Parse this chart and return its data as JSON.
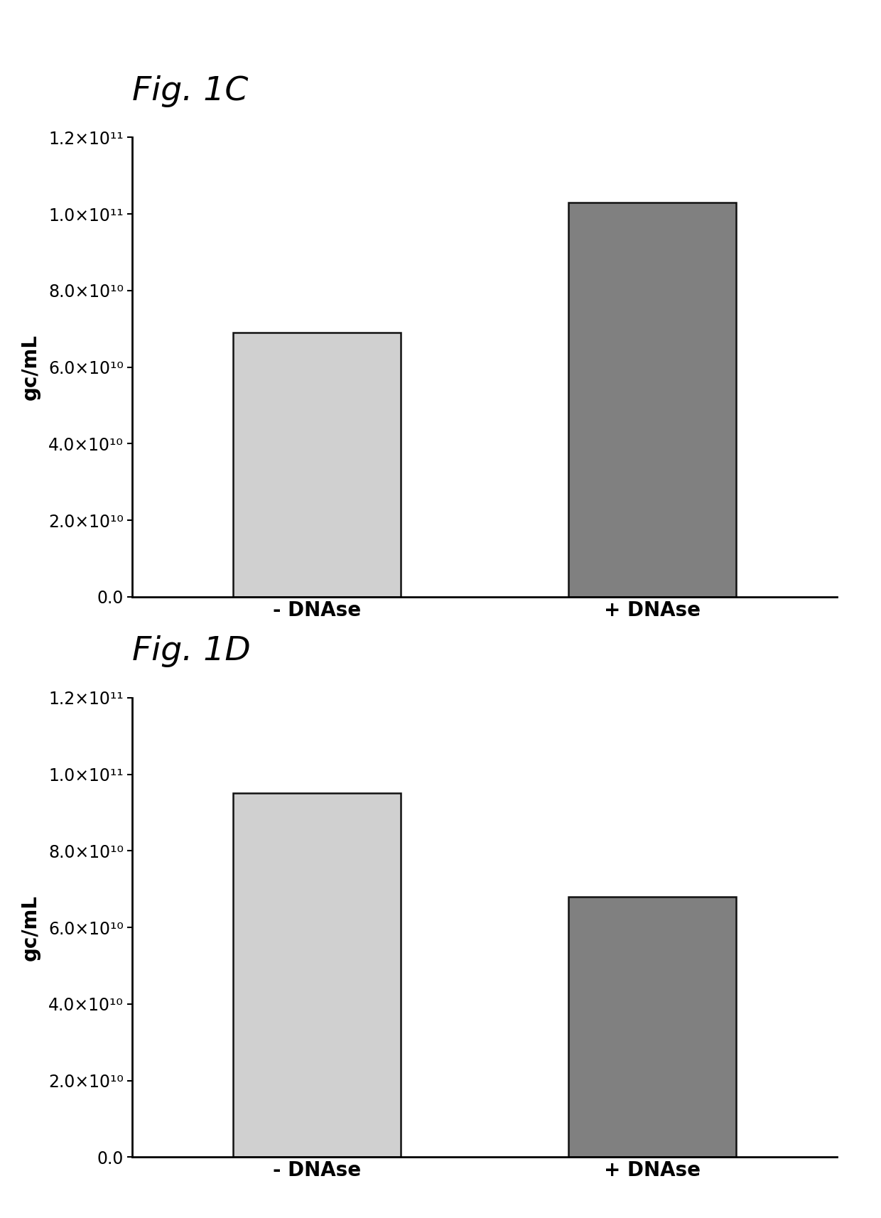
{
  "fig_c": {
    "title": "Fig. 1C",
    "categories": [
      "- DNAse",
      "+ DNAse"
    ],
    "values": [
      69000000000.0,
      103000000000.0
    ],
    "bar_colors": [
      "#d0d0d0",
      "#808080"
    ],
    "bar_edgecolor": "#111111",
    "bar_hatch": [
      "///",
      "///"
    ],
    "ylabel": "gc/mL",
    "ylim": [
      0,
      120000000000.0
    ],
    "yticks": [
      0.0,
      20000000000.0,
      40000000000.0,
      60000000000.0,
      80000000000.0,
      100000000000.0,
      120000000000.0
    ]
  },
  "fig_d": {
    "title": "Fig. 1D",
    "categories": [
      "- DNAse",
      "+ DNAse"
    ],
    "values": [
      95000000000.0,
      68000000000.0
    ],
    "bar_colors": [
      "#d0d0d0",
      "#808080"
    ],
    "bar_edgecolor": "#111111",
    "bar_hatch": [
      "///",
      "///"
    ],
    "ylabel": "gc/mL",
    "ylim": [
      0,
      120000000000.0
    ],
    "yticks": [
      0.0,
      20000000000.0,
      40000000000.0,
      60000000000.0,
      80000000000.0,
      100000000000.0,
      120000000000.0
    ]
  },
  "background_color": "#ffffff",
  "bar_width": 0.5,
  "title_fontsize": 34,
  "ylabel_fontsize": 20,
  "xtick_fontsize": 20,
  "ytick_fontsize": 17
}
